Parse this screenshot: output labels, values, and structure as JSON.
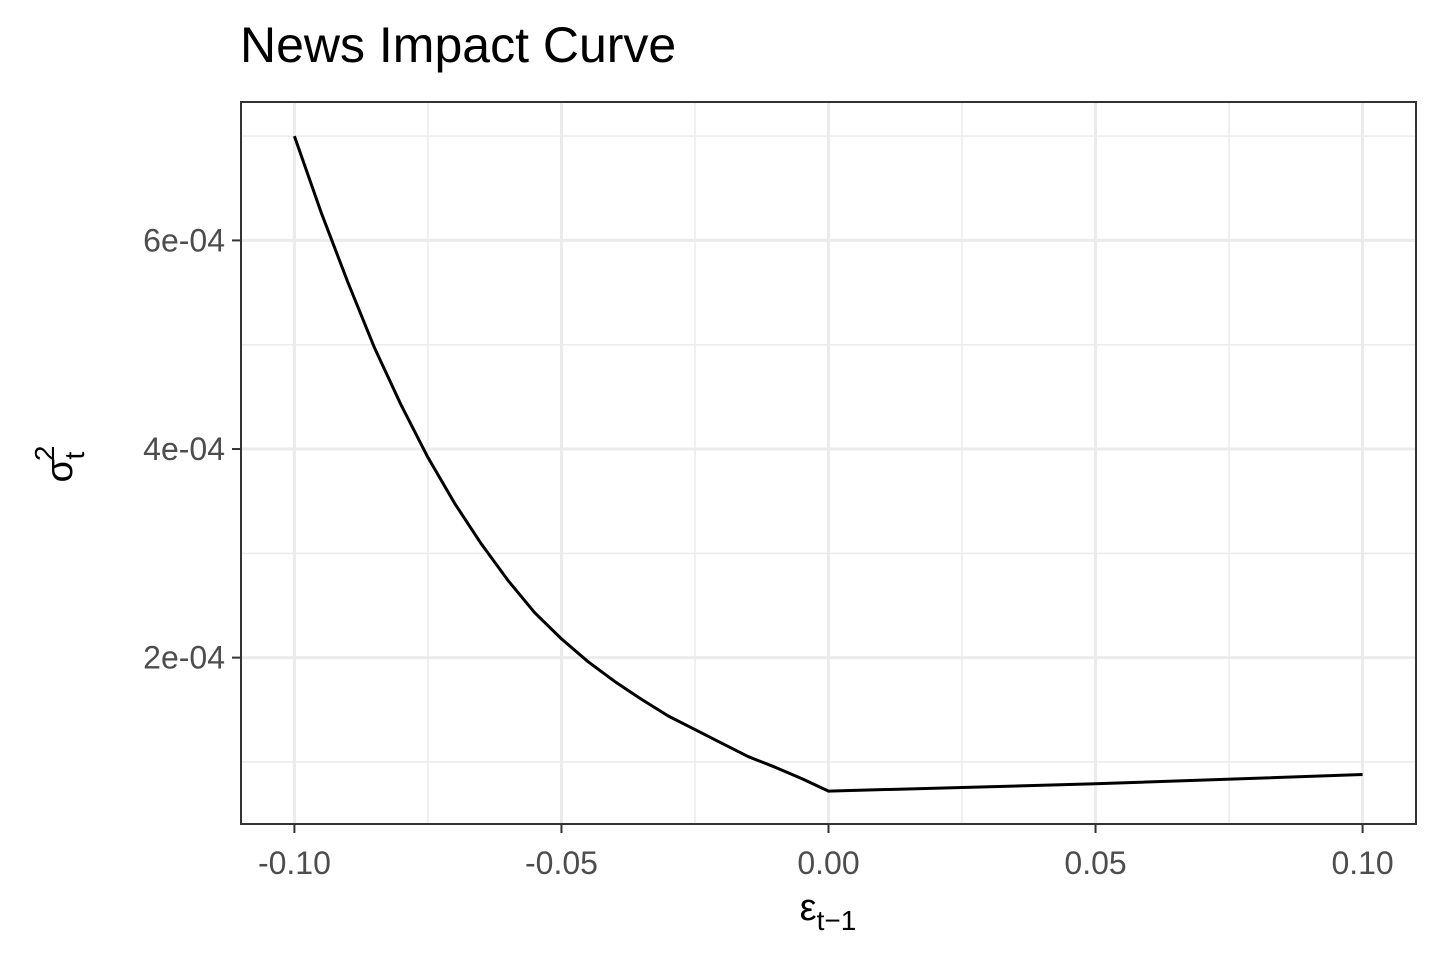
{
  "chart_data": {
    "type": "line",
    "title": "News Impact Curve",
    "xlabel": {
      "base": "ε",
      "sub": "t−1"
    },
    "ylabel": {
      "base": "σ",
      "sup": "2",
      "sub": "t"
    },
    "xlim": [
      -0.11,
      0.11
    ],
    "ylim": [
      4.05e-05,
      0.0007327
    ],
    "x_ticks": [
      -0.1,
      -0.05,
      0.0,
      0.05,
      0.1
    ],
    "x_tick_labels": [
      "-0.10",
      "-0.05",
      "0.00",
      "0.05",
      "0.10"
    ],
    "x_minor": [
      -0.075,
      -0.025,
      0.025,
      0.075
    ],
    "y_ticks": [
      0.0002,
      0.0004,
      0.0006
    ],
    "y_tick_labels": [
      "2e-04",
      "4e-04",
      "6e-04"
    ],
    "y_minor": [
      0.0001,
      0.0003,
      0.0005,
      0.0007
    ],
    "grid": true,
    "line_color": "#000000",
    "series": [
      {
        "x": [
          -0.1,
          -0.095,
          -0.09,
          -0.085,
          -0.08,
          -0.075,
          -0.07,
          -0.065,
          -0.06,
          -0.055,
          -0.05,
          -0.045,
          -0.04,
          -0.035,
          -0.03,
          -0.025,
          -0.02,
          -0.015,
          -0.01,
          -0.005,
          0.0,
          0.05,
          0.1
        ],
        "values": [
          0.0007,
          0.000627,
          0.00056,
          0.000497,
          0.000442,
          0.000392,
          0.000348,
          0.000309,
          0.000274,
          0.000243,
          0.000218,
          0.000196,
          0.000177,
          0.00016,
          0.000144,
          0.000131,
          0.000118,
          0.000105,
          9.5e-05,
          8.4e-05,
          7.2e-05,
          7.9e-05,
          8.8e-05
        ]
      }
    ]
  }
}
